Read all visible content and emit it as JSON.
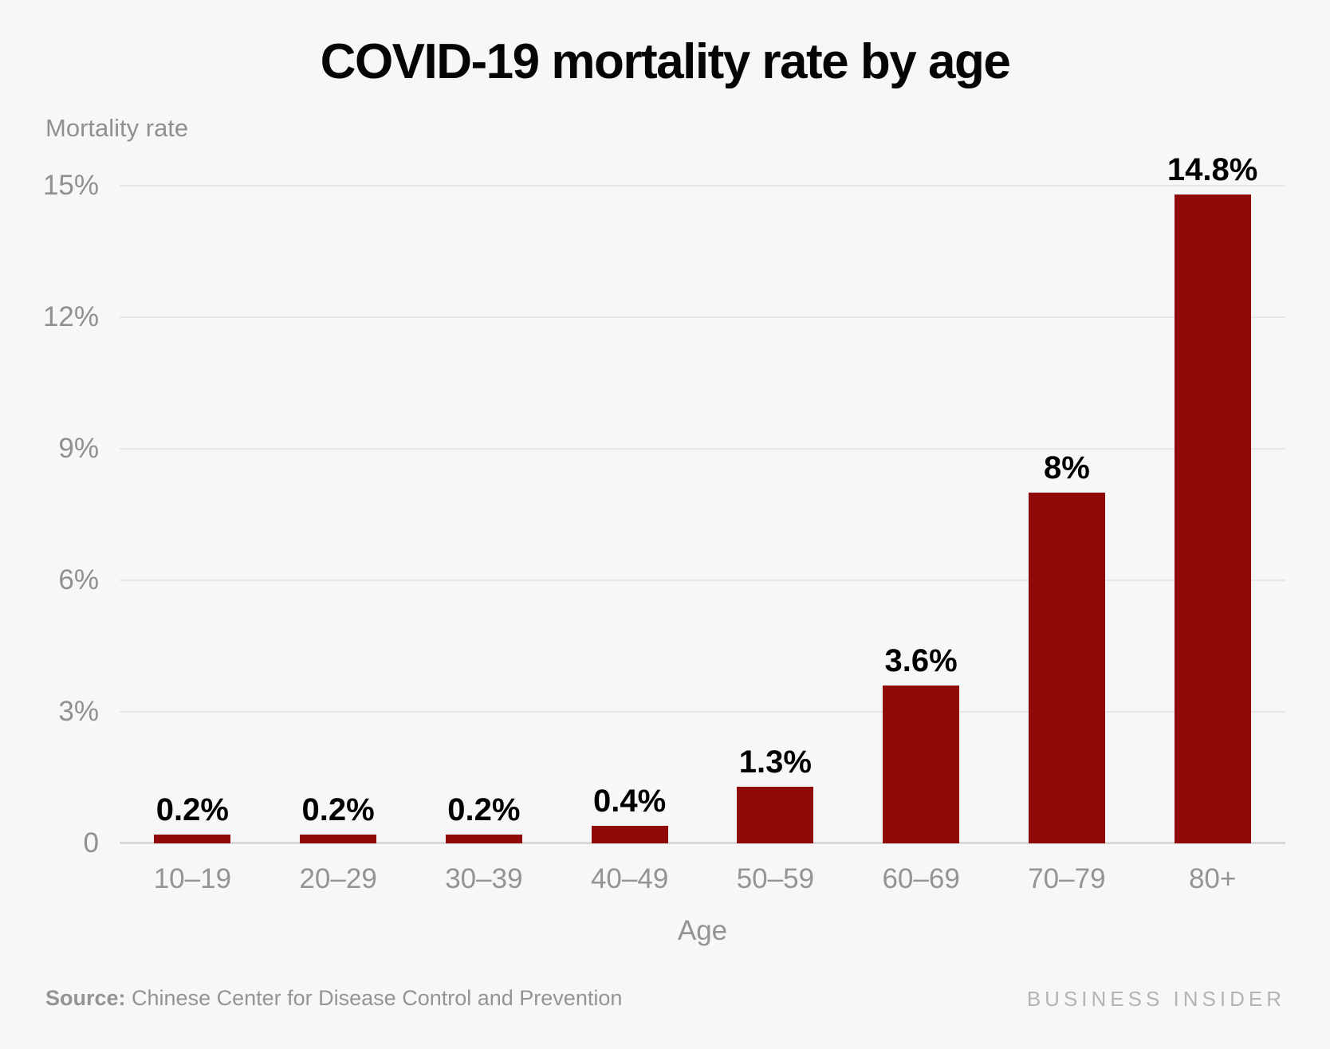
{
  "chart_data": {
    "type": "bar",
    "title": "COVID-19 mortality rate by age",
    "xlabel": "Age",
    "ylabel": "Mortality rate",
    "categories": [
      "10–19",
      "20–29",
      "30–39",
      "40–49",
      "50–59",
      "60–69",
      "70–79",
      "80+"
    ],
    "values": [
      0.2,
      0.2,
      0.2,
      0.4,
      1.3,
      3.6,
      8,
      14.8
    ],
    "value_labels": [
      "0.2%",
      "0.2%",
      "0.2%",
      "0.4%",
      "1.3%",
      "3.6%",
      "8%",
      "14.8%"
    ],
    "ylim": [
      0,
      15
    ],
    "yticks": [
      0,
      3,
      6,
      9,
      12,
      15
    ],
    "ytick_labels": [
      "0",
      "3%",
      "6%",
      "9%",
      "12%",
      "15%"
    ],
    "grid": true,
    "legend": false
  },
  "footer": {
    "source_label": "Source:",
    "source_text": " Chinese Center for Disease Control and Prevention",
    "branding": "BUSINESS INSIDER"
  },
  "colors": {
    "background": "#f7f7f7",
    "bar": "#910a0a",
    "grid": "#e7e7e7",
    "axis_line": "#d8d8d8",
    "title_text": "#050505",
    "muted_text": "#909090",
    "muted_text2": "#949494",
    "value_text": "#000000",
    "branding_text": "#b4b4b4"
  }
}
